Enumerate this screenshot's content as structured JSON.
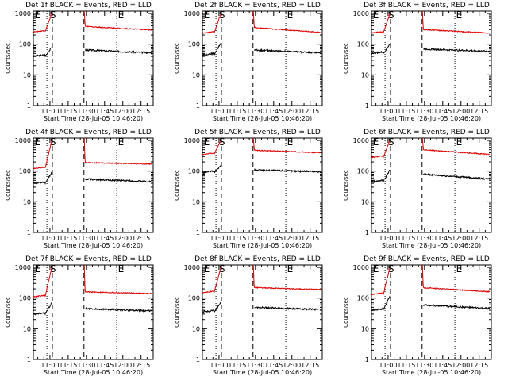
{
  "colors": {
    "events": "#000000",
    "lld": "#e00000",
    "axes": "#000000",
    "background": "#ffffff"
  },
  "common": {
    "xlabel": "Start Time (28-Jul-05 10:46:20)",
    "ylabel": "Counts/sec",
    "x_tick_labels": [
      "11:00",
      "11:15",
      "11:30",
      "11:45",
      "12:00",
      "12:15"
    ],
    "x_tick_minutes": [
      660,
      675,
      690,
      705,
      720,
      735
    ],
    "y_tick_labels": [
      "1",
      "10",
      "100",
      "1000"
    ],
    "y_tick_values": [
      1,
      10,
      100,
      1000
    ],
    "xlim_minutes": [
      646.33,
      745
    ],
    "ylim": [
      1,
      1200
    ],
    "yscale": "log",
    "vline_minutes": {
      "dotted": [
        657.5,
        715
      ],
      "dashed": [
        662,
        688
      ]
    },
    "flag_labels": {
      "start": "E",
      "seg": "S",
      "end": "E"
    },
    "flag_minutes": {
      "start": 647.5,
      "seg": 660,
      "end": 716
    }
  },
  "chart_data": [
    {
      "type": "line",
      "title": "Det 1f BLACK = Events, RED = LLD",
      "yscale": "log",
      "series": [
        {
          "name": "Events",
          "level_before": 40,
          "peak": 80,
          "level_after": 65,
          "level_end": 52
        },
        {
          "name": "LLD",
          "level_before": 250,
          "peak": 1000,
          "level_after": 380,
          "level_end": 290
        }
      ]
    },
    {
      "type": "line",
      "title": "Det 2f BLACK = Events, RED = LLD",
      "yscale": "log",
      "series": [
        {
          "name": "Events",
          "level_before": 45,
          "peak": 110,
          "level_after": 65,
          "level_end": 52
        },
        {
          "name": "LLD",
          "level_before": 230,
          "peak": 1000,
          "level_after": 350,
          "level_end": 240
        }
      ]
    },
    {
      "type": "line",
      "title": "Det 3f BLACK = Events, RED = LLD",
      "yscale": "log",
      "series": [
        {
          "name": "Events",
          "level_before": 50,
          "peak": 100,
          "level_after": 70,
          "level_end": 58
        },
        {
          "name": "LLD",
          "level_before": 230,
          "peak": 1000,
          "level_after": 300,
          "level_end": 230
        }
      ]
    },
    {
      "type": "line",
      "title": "Det 4f BLACK = Events, RED = LLD",
      "yscale": "log",
      "series": [
        {
          "name": "Events",
          "level_before": 40,
          "peak": 90,
          "level_after": 55,
          "level_end": 45
        },
        {
          "name": "LLD",
          "level_before": 120,
          "peak": 1000,
          "level_after": 190,
          "level_end": 170
        }
      ]
    },
    {
      "type": "line",
      "title": "Det 5f BLACK = Events, RED = LLD",
      "yscale": "log",
      "series": [
        {
          "name": "Events",
          "level_before": 90,
          "peak": 150,
          "level_after": 110,
          "level_end": 95
        },
        {
          "name": "LLD",
          "level_before": 350,
          "peak": 1000,
          "level_after": 480,
          "level_end": 400
        }
      ]
    },
    {
      "type": "line",
      "title": "Det 6f BLACK = Events, RED = LLD",
      "yscale": "log",
      "series": [
        {
          "name": "Events",
          "level_before": 45,
          "peak": 110,
          "level_after": 80,
          "level_end": 55
        },
        {
          "name": "LLD",
          "level_before": 280,
          "peak": 1000,
          "level_after": 500,
          "level_end": 350
        }
      ]
    },
    {
      "type": "line",
      "title": "Det 7f BLACK = Events, RED = LLD",
      "yscale": "log",
      "series": [
        {
          "name": "Events",
          "level_before": 30,
          "peak": 70,
          "level_after": 45,
          "level_end": 38
        },
        {
          "name": "LLD",
          "level_before": 110,
          "peak": 1000,
          "level_after": 160,
          "level_end": 140
        }
      ]
    },
    {
      "type": "line",
      "title": "Det 8f BLACK = Events, RED = LLD",
      "yscale": "log",
      "series": [
        {
          "name": "Events",
          "level_before": 35,
          "peak": 70,
          "level_after": 50,
          "level_end": 42
        },
        {
          "name": "LLD",
          "level_before": 150,
          "peak": 1000,
          "level_after": 220,
          "level_end": 190
        }
      ]
    },
    {
      "type": "line",
      "title": "Det 9f BLACK = Events, RED = LLD",
      "yscale": "log",
      "series": [
        {
          "name": "Events",
          "level_before": 40,
          "peak": 120,
          "level_after": 60,
          "level_end": 45
        },
        {
          "name": "LLD",
          "level_before": 130,
          "peak": 1000,
          "level_after": 220,
          "level_end": 160
        }
      ]
    }
  ]
}
